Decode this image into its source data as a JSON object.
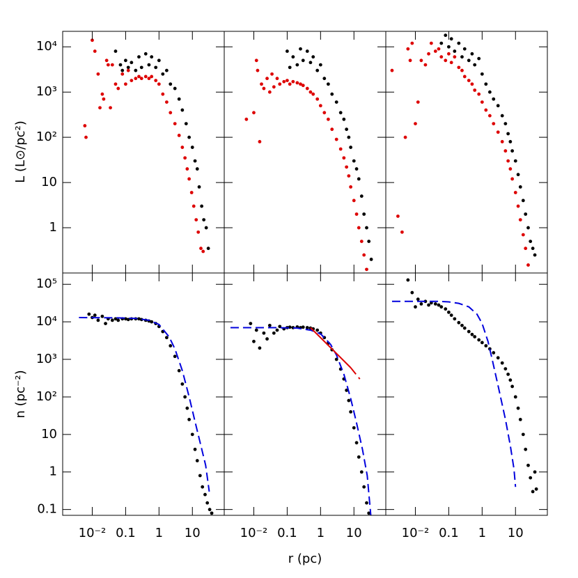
{
  "chart_data": [
    {
      "type": "scatter",
      "log_x": true,
      "log_y": true,
      "ylabel": "L (L⊙/pc²)",
      "xlim": [
        0.0013,
        90
      ],
      "ylim": [
        0.1,
        22000
      ],
      "xticks": [
        0.01,
        0.1,
        1,
        10
      ],
      "x_tick_labels": false,
      "yticks": [
        1,
        10,
        {
          "value": 100,
          "label": "10²"
        },
        {
          "value": 1000,
          "label": "10³"
        },
        {
          "value": 10000,
          "label": "10⁴"
        }
      ],
      "y_tick_labels": true,
      "series": [
        {
          "color": "#000000",
          "x": [
            0.05,
            0.07,
            0.08,
            0.1,
            0.12,
            0.15,
            0.2,
            0.25,
            0.3,
            0.4,
            0.5,
            0.6,
            0.8,
            1,
            1.3,
            1.7,
            2.2,
            3,
            4,
            5,
            6.5,
            8,
            10,
            12,
            14,
            16,
            19,
            22,
            26,
            30
          ],
          "values": [
            8000,
            4000,
            3000,
            5000,
            3500,
            4500,
            3000,
            6000,
            3500,
            7000,
            4000,
            6000,
            3500,
            5000,
            2500,
            3000,
            1500,
            1200,
            700,
            400,
            200,
            100,
            60,
            30,
            20,
            8,
            3,
            1.5,
            1,
            0.35
          ]
        },
        {
          "color": "#dd0000",
          "x": [
            0.006,
            0.0065,
            0.01,
            0.012,
            0.015,
            0.017,
            0.02,
            0.022,
            0.027,
            0.03,
            0.035,
            0.04,
            0.05,
            0.06,
            0.08,
            0.1,
            0.12,
            0.15,
            0.2,
            0.25,
            0.3,
            0.4,
            0.5,
            0.6,
            0.8,
            1,
            1.3,
            1.7,
            2.2,
            3,
            4,
            5,
            6,
            7,
            8,
            9.5,
            11,
            13,
            15,
            18,
            21
          ],
          "values": [
            180,
            100,
            14000,
            8000,
            2500,
            450,
            900,
            700,
            5000,
            4000,
            450,
            4000,
            1500,
            1200,
            2500,
            1500,
            3000,
            1800,
            2000,
            2200,
            2000,
            2200,
            2000,
            2200,
            1800,
            1500,
            900,
            600,
            350,
            200,
            110,
            60,
            35,
            20,
            12,
            6,
            3,
            1.5,
            0.8,
            0.35,
            0.3
          ]
        }
      ]
    },
    {
      "type": "scatter",
      "log_x": true,
      "log_y": true,
      "xlim": [
        0.0013,
        90
      ],
      "ylim": [
        0.1,
        22000
      ],
      "xticks": [
        0.01,
        0.1,
        1,
        10
      ],
      "x_tick_labels": false,
      "yticks": [
        1,
        10,
        100,
        1000,
        10000
      ],
      "y_tick_labels": false,
      "series": [
        {
          "color": "#000000",
          "x": [
            0.1,
            0.12,
            0.15,
            0.2,
            0.25,
            0.3,
            0.4,
            0.5,
            0.6,
            0.8,
            1,
            1.3,
            1.7,
            2.2,
            3,
            4,
            5,
            6,
            7,
            8,
            10,
            12,
            14,
            17,
            20,
            24,
            28,
            33
          ],
          "values": [
            8000,
            3500,
            6000,
            4000,
            9000,
            5000,
            8000,
            4500,
            6000,
            3000,
            4000,
            2000,
            1500,
            900,
            600,
            350,
            250,
            150,
            100,
            60,
            30,
            20,
            12,
            5,
            2,
            1,
            0.5,
            0.2
          ]
        },
        {
          "color": "#dd0000",
          "x": [
            0.006,
            0.01,
            0.012,
            0.013,
            0.015,
            0.017,
            0.02,
            0.025,
            0.03,
            0.035,
            0.04,
            0.05,
            0.06,
            0.08,
            0.1,
            0.12,
            0.15,
            0.2,
            0.25,
            0.3,
            0.4,
            0.5,
            0.6,
            0.8,
            1,
            1.3,
            1.7,
            2.2,
            3,
            4,
            5,
            6,
            7,
            8,
            10,
            12,
            14,
            17,
            20,
            24
          ],
          "values": [
            250,
            350,
            5000,
            3000,
            80,
            1500,
            1200,
            2000,
            1000,
            2500,
            1300,
            2000,
            1500,
            1700,
            1800,
            1500,
            1700,
            1600,
            1500,
            1400,
            1200,
            1000,
            900,
            700,
            500,
            350,
            250,
            150,
            90,
            55,
            35,
            22,
            14,
            8,
            4,
            2,
            1,
            0.5,
            0.25,
            0.12
          ]
        }
      ]
    },
    {
      "type": "scatter",
      "log_x": true,
      "log_y": true,
      "xlim": [
        0.0013,
        90
      ],
      "ylim": [
        0.1,
        22000
      ],
      "xticks": [
        0.01,
        0.1,
        1,
        10
      ],
      "x_tick_labels": false,
      "yticks": [
        1,
        10,
        100,
        1000,
        10000
      ],
      "y_tick_labels": false,
      "series": [
        {
          "color": "#000000",
          "x": [
            0.06,
            0.08,
            0.1,
            0.12,
            0.15,
            0.2,
            0.25,
            0.3,
            0.4,
            0.5,
            0.6,
            0.8,
            1,
            1.3,
            1.7,
            2.2,
            3,
            4,
            5,
            6,
            7,
            8,
            10,
            12,
            14,
            17,
            20,
            24,
            28,
            33,
            38
          ],
          "values": [
            12000,
            18000,
            10000,
            15000,
            8000,
            12000,
            6000,
            9000,
            5000,
            7000,
            4000,
            5500,
            2500,
            1500,
            1000,
            700,
            500,
            300,
            200,
            120,
            80,
            50,
            30,
            15,
            8,
            4,
            2,
            1,
            0.5,
            0.35,
            0.25
          ]
        },
        {
          "color": "#dd0000",
          "x": [
            0.002,
            0.003,
            0.004,
            0.005,
            0.006,
            0.007,
            0.008,
            0.01,
            0.012,
            0.015,
            0.02,
            0.025,
            0.03,
            0.04,
            0.05,
            0.06,
            0.08,
            0.1,
            0.12,
            0.15,
            0.2,
            0.25,
            0.3,
            0.4,
            0.5,
            0.6,
            0.8,
            1,
            1.3,
            1.7,
            2.2,
            3,
            4,
            5,
            6,
            7,
            8,
            10,
            12,
            14,
            17,
            20,
            24
          ],
          "values": [
            3000,
            1.8,
            0.8,
            100,
            9000,
            5000,
            12000,
            200,
            600,
            5000,
            4000,
            7000,
            12000,
            8000,
            9000,
            6000,
            5000,
            7000,
            4500,
            6000,
            3500,
            3000,
            2200,
            1800,
            1500,
            1100,
            900,
            600,
            400,
            300,
            200,
            130,
            80,
            50,
            30,
            20,
            12,
            6,
            3,
            1.5,
            0.7,
            0.35,
            0.15
          ]
        }
      ]
    },
    {
      "type": "scatter",
      "log_x": true,
      "log_y": true,
      "ylabel": "n (pc⁻²)",
      "xlim": [
        0.0013,
        90
      ],
      "ylim": [
        0.07,
        200000
      ],
      "xticks": [
        {
          "value": 0.01,
          "label": "10⁻²"
        },
        0.1,
        1,
        10
      ],
      "x_tick_labels": true,
      "yticks": [
        0.1,
        1,
        10,
        {
          "value": 100,
          "label": "10²"
        },
        {
          "value": 1000,
          "label": "10³"
        },
        {
          "value": 10000,
          "label": "10⁴"
        },
        {
          "value": 100000,
          "label": "10⁵"
        }
      ],
      "y_tick_labels": true,
      "series": [
        {
          "color": "#000000",
          "x": [
            0.008,
            0.01,
            0.012,
            0.015,
            0.02,
            0.025,
            0.03,
            0.04,
            0.05,
            0.06,
            0.08,
            0.1,
            0.12,
            0.15,
            0.2,
            0.25,
            0.3,
            0.4,
            0.5,
            0.6,
            0.8,
            1,
            1.3,
            1.7,
            2.2,
            3,
            4,
            5,
            6,
            7,
            8,
            10,
            12,
            14,
            17,
            20,
            24,
            28,
            33,
            38
          ],
          "values": [
            16000,
            13000,
            15000,
            11000,
            14000,
            9000,
            12000,
            11000,
            12000,
            11000,
            12000,
            12000,
            11500,
            12000,
            12000,
            12000,
            11500,
            11000,
            10500,
            10000,
            9000,
            7500,
            5500,
            3800,
            2300,
            1200,
            500,
            220,
            100,
            50,
            25,
            10,
            4,
            2,
            0.8,
            0.4,
            0.25,
            0.15,
            0.1,
            0.08
          ]
        },
        {
          "color": "#0000dd",
          "type": "line",
          "dash": true,
          "x": [
            0.004,
            0.05,
            0.2,
            0.5,
            1,
            2,
            3,
            5,
            8,
            12,
            18,
            25,
            32
          ],
          "values": [
            13000,
            12800,
            12300,
            11000,
            8500,
            4000,
            1900,
            500,
            100,
            22,
            5,
            1.5,
            0.3
          ]
        }
      ]
    },
    {
      "type": "scatter",
      "log_x": true,
      "log_y": true,
      "xlabel": "r (pc)",
      "xlim": [
        0.0013,
        90
      ],
      "ylim": [
        0.07,
        200000
      ],
      "xticks": [
        {
          "value": 0.01,
          "label": "10⁻²"
        },
        0.1,
        1,
        10
      ],
      "x_tick_labels": true,
      "yticks": [
        0.1,
        1,
        10,
        100,
        1000,
        10000,
        100000
      ],
      "y_tick_labels": false,
      "series": [
        {
          "color": "#000000",
          "x": [
            0.008,
            0.01,
            0.012,
            0.015,
            0.02,
            0.025,
            0.03,
            0.04,
            0.05,
            0.06,
            0.08,
            0.1,
            0.12,
            0.15,
            0.2,
            0.25,
            0.3,
            0.4,
            0.5,
            0.6,
            0.8,
            1,
            1.3,
            1.7,
            2.2,
            3,
            4,
            5,
            6,
            7,
            8,
            10,
            12,
            14,
            17,
            20,
            24,
            28
          ],
          "values": [
            9000,
            3000,
            6000,
            2000,
            5000,
            3500,
            8000,
            5000,
            6000,
            7500,
            6500,
            7000,
            7200,
            7000,
            7300,
            7000,
            7200,
            7000,
            6800,
            6500,
            6000,
            5000,
            3800,
            2700,
            1800,
            1000,
            550,
            300,
            150,
            80,
            40,
            15,
            6,
            2.5,
            1,
            0.4,
            0.15,
            0.08
          ]
        },
        {
          "color": "#0000dd",
          "type": "line",
          "dash": true,
          "x": [
            0.002,
            0.05,
            0.2,
            0.5,
            1,
            2,
            3,
            5,
            8,
            12,
            18,
            25,
            32
          ],
          "values": [
            7000,
            7000,
            6800,
            6000,
            4800,
            2500,
            1300,
            400,
            90,
            20,
            4,
            0.8,
            0.07
          ]
        },
        {
          "color": "#dd0000",
          "type": "line",
          "dash": false,
          "x": [
            0.5,
            8
          ],
          "values": [
            7000,
            600
          ]
        },
        {
          "color": "#dd0000",
          "type": "line",
          "dash": true,
          "x": [
            8,
            15
          ],
          "values": [
            600,
            300
          ]
        }
      ]
    },
    {
      "type": "scatter",
      "log_x": true,
      "log_y": true,
      "xlim": [
        0.0013,
        90
      ],
      "ylim": [
        0.07,
        200000
      ],
      "xticks": [
        {
          "value": 0.01,
          "label": "10⁻²"
        },
        0.1,
        1,
        10
      ],
      "x_tick_labels": true,
      "yticks": [
        0.1,
        1,
        10,
        100,
        1000,
        10000,
        100000
      ],
      "y_tick_labels": false,
      "series": [
        {
          "color": "#000000",
          "x": [
            0.006,
            0.008,
            0.01,
            0.012,
            0.015,
            0.02,
            0.025,
            0.03,
            0.04,
            0.05,
            0.06,
            0.08,
            0.1,
            0.12,
            0.15,
            0.2,
            0.25,
            0.3,
            0.4,
            0.5,
            0.6,
            0.8,
            1,
            1.3,
            1.7,
            2.2,
            3,
            4,
            5,
            6,
            7,
            8,
            10,
            12,
            14,
            17,
            20,
            24,
            28,
            33,
            38,
            42
          ],
          "values": [
            130000,
            60000,
            25000,
            40000,
            30000,
            35000,
            28000,
            32000,
            30000,
            28000,
            25000,
            22000,
            18000,
            15000,
            12000,
            9500,
            8000,
            6800,
            5500,
            4600,
            4000,
            3300,
            2800,
            2300,
            1900,
            1500,
            1100,
            800,
            560,
            400,
            280,
            190,
            100,
            50,
            25,
            10,
            4,
            1.5,
            0.7,
            0.3,
            1,
            0.35
          ]
        },
        {
          "color": "#0000dd",
          "type": "line",
          "dash": true,
          "x": [
            0.002,
            0.05,
            0.1,
            0.2,
            0.4,
            0.7,
            1,
            1.5,
            2,
            3,
            5,
            7,
            9,
            10
          ],
          "values": [
            35000,
            35000,
            34000,
            31000,
            25000,
            16000,
            9000,
            3000,
            1000,
            200,
            25,
            5,
            1.2,
            0.4
          ]
        }
      ]
    }
  ]
}
